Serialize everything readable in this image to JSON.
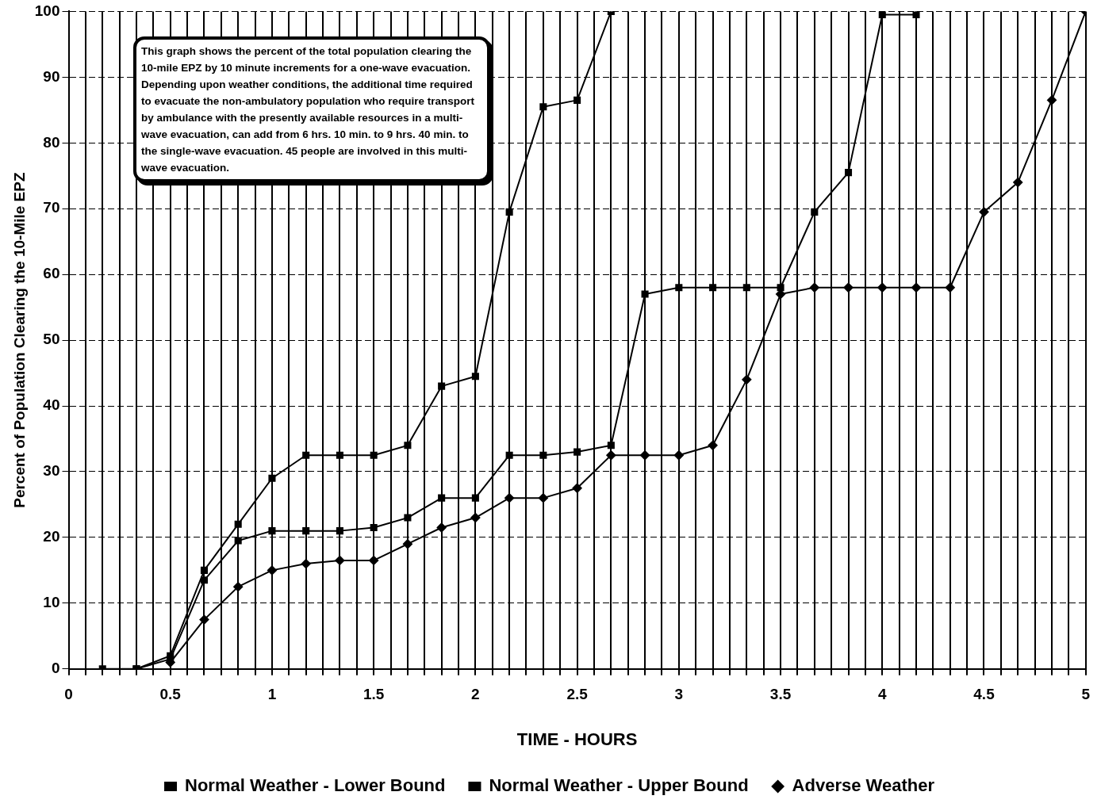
{
  "chart_data": {
    "type": "line",
    "xlabel": "TIME - HOURS",
    "ylabel": "Percent of Population Clearing the 10-Mile EPZ",
    "annotations": [
      "This graph shows the percent of the total population clearing the 10-mile EPZ by 10 minute increments for a one-wave evacuation.  Depending upon weather conditions, the additional time required to evacuate the non-ambulatory population who require transport by ambulance with the presently available resources in a multi-wave evacuation, can add from 6 hrs. 10 min. to 9 hrs. 40 min. to the single-wave evacuation.  45 people are involved in this multi-wave evacuation."
    ],
    "series": [
      {
        "name": "Normal Weather - Lower Bound",
        "color": "#000000",
        "marker": "square",
        "x": [
          0.1667,
          0.3333,
          0.5,
          0.6667,
          0.8333,
          1,
          1.1667,
          1.3333,
          1.5,
          1.6667,
          1.8333,
          2,
          2.1667,
          2.3333,
          2.5,
          2.6667
        ],
        "values": [
          0,
          0,
          2,
          15,
          22,
          29,
          32.5,
          32.5,
          32.5,
          34,
          43,
          44.5,
          69.5,
          85.5,
          86.5,
          100
        ]
      },
      {
        "name": "Normal Weather - Upper Bound",
        "color": "#000000",
        "marker": "square",
        "x": [
          0.3333,
          0.5,
          0.6667,
          0.8333,
          1,
          1.1667,
          1.3333,
          1.5,
          1.6667,
          1.8333,
          2,
          2.1667,
          2.3333,
          2.5,
          2.6667,
          2.8333,
          3,
          3.1667,
          3.3333,
          3.5,
          3.6667,
          3.8333,
          4,
          4.1667
        ],
        "values": [
          0,
          1.5,
          13.5,
          19.5,
          21,
          21,
          21,
          21.5,
          23,
          26,
          26,
          32.5,
          32.5,
          33,
          34,
          57,
          58,
          58,
          58,
          58,
          69.5,
          75.5,
          99.5,
          99.5
        ]
      },
      {
        "name": "Adverse Weather",
        "color": "#000000",
        "marker": "diamond",
        "x": [
          0.5,
          0.6667,
          0.8333,
          1,
          1.1667,
          1.3333,
          1.5,
          1.6667,
          1.8333,
          2,
          2.1667,
          2.3333,
          2.5,
          2.6667,
          2.8333,
          3,
          3.1667,
          3.3333,
          3.5,
          3.6667,
          3.8333,
          4,
          4.1667,
          4.3333,
          4.5,
          4.6667,
          4.8333,
          5
        ],
        "values": [
          1,
          7.5,
          12.5,
          15,
          16,
          16.5,
          16.5,
          19,
          21.5,
          23,
          26,
          26,
          27.5,
          32.5,
          32.5,
          32.5,
          34,
          44,
          57,
          58,
          58,
          58,
          58,
          58,
          69.5,
          74,
          86.5,
          100
        ]
      }
    ],
    "xlim": [
      0,
      5
    ],
    "xticks": [
      0,
      {
        "value": 0.0833,
        "label": null
      },
      {
        "value": 0.1667,
        "label": null
      },
      {
        "value": 0.25,
        "label": null
      },
      {
        "value": 0.3333,
        "label": null
      },
      {
        "value": 0.4167,
        "label": null
      },
      0.5,
      {
        "value": 0.5833,
        "label": null
      },
      {
        "value": 0.6667,
        "label": null
      },
      {
        "value": 0.75,
        "label": null
      },
      {
        "value": 0.8333,
        "label": null
      },
      {
        "value": 0.9167,
        "label": null
      },
      1,
      {
        "value": 1.0833,
        "label": null
      },
      {
        "value": 1.1667,
        "label": null
      },
      {
        "value": 1.25,
        "label": null
      },
      {
        "value": 1.3333,
        "label": null
      },
      {
        "value": 1.4167,
        "label": null
      },
      1.5,
      {
        "value": 1.5833,
        "label": null
      },
      {
        "value": 1.6667,
        "label": null
      },
      {
        "value": 1.75,
        "label": null
      },
      {
        "value": 1.8333,
        "label": null
      },
      {
        "value": 1.9167,
        "label": null
      },
      2,
      {
        "value": 2.0833,
        "label": null
      },
      {
        "value": 2.1667,
        "label": null
      },
      {
        "value": 2.25,
        "label": null
      },
      {
        "value": 2.3333,
        "label": null
      },
      {
        "value": 2.4167,
        "label": null
      },
      2.5,
      {
        "value": 2.5833,
        "label": null
      },
      {
        "value": 2.6667,
        "label": null
      },
      {
        "value": 2.75,
        "label": null
      },
      {
        "value": 2.8333,
        "label": null
      },
      {
        "value": 2.9167,
        "label": null
      },
      3,
      {
        "value": 3.0833,
        "label": null
      },
      {
        "value": 3.1667,
        "label": null
      },
      {
        "value": 3.25,
        "label": null
      },
      {
        "value": 3.3333,
        "label": null
      },
      {
        "value": 3.4167,
        "label": null
      },
      3.5,
      {
        "value": 3.5833,
        "label": null
      },
      {
        "value": 3.6667,
        "label": null
      },
      {
        "value": 3.75,
        "label": null
      },
      {
        "value": 3.8333,
        "label": null
      },
      {
        "value": 3.9167,
        "label": null
      },
      4,
      {
        "value": 4.0833,
        "label": null
      },
      {
        "value": 4.1667,
        "label": null
      },
      {
        "value": 4.25,
        "label": null
      },
      {
        "value": 4.3333,
        "label": null
      },
      {
        "value": 4.4167,
        "label": null
      },
      4.5,
      {
        "value": 4.5833,
        "label": null
      },
      {
        "value": 4.6667,
        "label": null
      },
      {
        "value": 4.75,
        "label": null
      },
      {
        "value": 4.8333,
        "label": null
      },
      {
        "value": 4.9167,
        "label": null
      },
      5
    ],
    "ylim": [
      0,
      100
    ],
    "yticks": [
      0,
      10,
      20,
      30,
      40,
      50,
      60,
      70,
      80,
      90,
      100
    ],
    "grid": true,
    "legend": "bottom",
    "line_style": "solid"
  }
}
